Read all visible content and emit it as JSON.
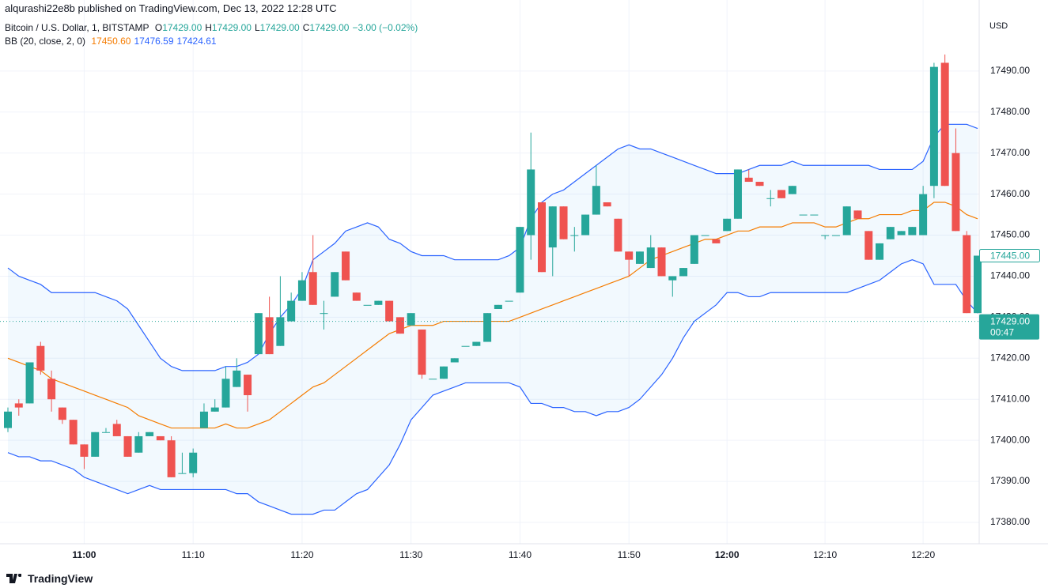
{
  "header": {
    "publisher": "alqurashi22e8b published on TradingView.com, Dec 13, 2022 12:28 UTC",
    "symbol": "Bitcoin / U.S. Dollar, 1, BITSTAMP",
    "ohlc": [
      {
        "key": "O",
        "text": "17429.00"
      },
      {
        "key": "H",
        "text": "17429.00"
      },
      {
        "key": "L",
        "text": "17429.00"
      },
      {
        "key": "C",
        "text": "17429.00"
      }
    ],
    "change": "−3.00 (−0.02%)",
    "indicator": "BB (20, close, 2, 0)",
    "indicator_values": [
      {
        "text": "17450.60",
        "color": "#f57c00"
      },
      {
        "text": "17476.59",
        "color": "#2962ff"
      },
      {
        "text": "17424.61",
        "color": "#2962ff"
      }
    ],
    "currency": "USD",
    "footer": "TradingView"
  },
  "chart_data": {
    "type": "candlestick",
    "categories": [
      null,
      null,
      null,
      null,
      null,
      null,
      null,
      "11:00",
      null,
      null,
      null,
      null,
      null,
      null,
      null,
      null,
      null,
      "11:10",
      null,
      null,
      null,
      null,
      null,
      null,
      null,
      null,
      null,
      "11:20",
      null,
      null,
      null,
      null,
      null,
      null,
      null,
      null,
      null,
      "11:30",
      null,
      null,
      null,
      null,
      null,
      null,
      null,
      null,
      null,
      "11:40",
      null,
      null,
      null,
      null,
      null,
      null,
      null,
      null,
      null,
      "11:50",
      null,
      null,
      null,
      null,
      null,
      null,
      null,
      null,
      "12:00",
      null,
      null,
      null,
      null,
      null,
      null,
      null,
      null,
      "12:10",
      null,
      null,
      null,
      null,
      null,
      null,
      null,
      null,
      "12:20",
      null,
      null,
      null,
      null,
      null
    ],
    "open": [
      17403,
      17409,
      17409,
      17423,
      17415,
      17408,
      17405,
      17399,
      17396,
      17402,
      17404,
      17401,
      17397,
      17401,
      17401,
      17400,
      17392,
      17392,
      17403,
      17407,
      17408,
      17413,
      17416,
      17421,
      17430,
      17423,
      17429,
      17434,
      17441,
      17431,
      17435,
      17446,
      17436,
      17433,
      17433,
      17434,
      17430,
      17428,
      17427,
      17415,
      17415,
      17419,
      17423,
      17423,
      17424,
      17432,
      17434,
      17436,
      17450,
      17458,
      17447,
      17457,
      17450,
      17450,
      17455,
      17458,
      17454,
      17446,
      17443,
      17442,
      17447,
      17439,
      17440,
      17443,
      17450,
      17449,
      17451,
      17454,
      17464,
      17463,
      17459,
      17461,
      17460,
      17455,
      17455,
      17450,
      17450,
      17450,
      17456,
      17451,
      17444,
      17449,
      17450,
      17450,
      17450,
      17462,
      17492,
      17470,
      17450,
      17431
    ],
    "high": [
      17408,
      17410,
      17419,
      17424,
      17417,
      17408,
      17405,
      17399,
      17402,
      17403,
      17405,
      17401,
      17402,
      17402,
      17401,
      17401,
      17397,
      17398,
      17409,
      17410,
      17418,
      17420,
      17416,
      17431,
      17435,
      17440,
      17436,
      17441,
      17450,
      17434,
      17441,
      17446,
      17436,
      17433,
      17434,
      17434,
      17430,
      17431,
      17427,
      17415,
      17418,
      17420,
      17423,
      17424,
      17431,
      17433,
      17434,
      17452,
      17475,
      17458,
      17457,
      17457,
      17452,
      17455,
      17467,
      17458,
      17454,
      17446,
      17446,
      17450,
      17447,
      17440,
      17442,
      17450,
      17450,
      17449,
      17454,
      17466,
      17466,
      17463,
      17461,
      17461,
      17462,
      17455,
      17455,
      17450,
      17450,
      17457,
      17456,
      17451,
      17448,
      17452,
      17451,
      17452,
      17462,
      17492,
      17494,
      17476,
      17451,
      17445
    ],
    "low": [
      17402,
      17406,
      17409,
      17416,
      17407,
      17404,
      17399,
      17393,
      17396,
      17402,
      17401,
      17396,
      17397,
      17401,
      17400,
      17391,
      17392,
      17391,
      17403,
      17407,
      17408,
      17413,
      17407,
      17421,
      17421,
      17423,
      17429,
      17434,
      17433,
      17427,
      17435,
      17439,
      17434,
      17433,
      17433,
      17429,
      17426,
      17428,
      17415,
      17415,
      17415,
      17419,
      17423,
      17423,
      17424,
      17432,
      17434,
      17436,
      17444,
      17441,
      17440,
      17449,
      17446,
      17450,
      17455,
      17457,
      17446,
      17440,
      17443,
      17442,
      17440,
      17435,
      17440,
      17443,
      17450,
      17448,
      17451,
      17454,
      17463,
      17462,
      17457,
      17459,
      17460,
      17455,
      17455,
      17449,
      17450,
      17450,
      17454,
      17444,
      17444,
      17449,
      17450,
      17450,
      17450,
      17459,
      17462,
      17451,
      17431,
      17431
    ],
    "close": [
      17407,
      17408,
      17419,
      17417,
      17410,
      17405,
      17399,
      17396,
      17402,
      17402,
      17401,
      17396,
      17401,
      17402,
      17400,
      17391,
      17392,
      17397,
      17407,
      17408,
      17415,
      17417,
      17411,
      17431,
      17421,
      17430,
      17434,
      17439,
      17433,
      17431,
      17441,
      17439,
      17434,
      17433,
      17434,
      17429,
      17426,
      17431,
      17416,
      17415,
      17418,
      17420,
      17423,
      17424,
      17431,
      17433,
      17434,
      17452,
      17466,
      17441,
      17457,
      17449,
      17450,
      17455,
      17462,
      17457,
      17446,
      17444,
      17446,
      17447,
      17440,
      17440,
      17442,
      17450,
      17450,
      17448,
      17454,
      17466,
      17463,
      17462,
      17459,
      17459,
      17462,
      17455,
      17455,
      17450,
      17450,
      17457,
      17454,
      17444,
      17448,
      17452,
      17451,
      17452,
      17460,
      17491,
      17462,
      17451,
      17431,
      17445
    ],
    "up_color": "#26a69a",
    "down_color": "#ef5350",
    "bands": {
      "fill": "rgba(33,150,243,0.06)",
      "upper": {
        "color": "#2962ff",
        "values": [
          17442,
          17440,
          17439,
          17438,
          17436,
          17436,
          17436,
          17436,
          17436,
          17435,
          17434,
          17432,
          17428,
          17424,
          17420,
          17418,
          17417,
          17417,
          17417,
          17417,
          17418,
          17418,
          17419,
          17421,
          17426,
          17430,
          17433,
          17437,
          17444,
          17446,
          17448,
          17451,
          17452,
          17453,
          17452,
          17449,
          17448,
          17446,
          17445,
          17445,
          17445,
          17444,
          17444,
          17444,
          17444,
          17444,
          17445,
          17447,
          17454,
          17458,
          17460,
          17461,
          17463,
          17465,
          17467,
          17469,
          17471,
          17472,
          17471,
          17471,
          17470,
          17469,
          17468,
          17467,
          17466,
          17465,
          17465,
          17465,
          17466,
          17467,
          17467,
          17467,
          17468,
          17467,
          17467,
          17467,
          17467,
          17467,
          17467,
          17467,
          17466,
          17466,
          17466,
          17466,
          17468,
          17474,
          17477,
          17477,
          17477,
          17476
        ]
      },
      "middle": {
        "color": "#f57c00",
        "values": [
          17420,
          17419,
          17418,
          17417,
          17415,
          17414,
          17413,
          17412,
          17411,
          17410,
          17409,
          17408,
          17406,
          17405,
          17404,
          17403,
          17403,
          17403,
          17403,
          17403,
          17404,
          17403,
          17403,
          17404,
          17405,
          17407,
          17409,
          17411,
          17413,
          17414,
          17416,
          17418,
          17420,
          17422,
          17424,
          17426,
          17427,
          17428,
          17428,
          17428,
          17429,
          17429,
          17429,
          17429,
          17429,
          17429,
          17429,
          17430,
          17431,
          17432,
          17433,
          17434,
          17435,
          17436,
          17437,
          17438,
          17439,
          17440,
          17442,
          17444,
          17445,
          17446,
          17447,
          17448,
          17449,
          17449,
          17450,
          17451,
          17451,
          17452,
          17452,
          17452,
          17453,
          17453,
          17453,
          17452,
          17452,
          17453,
          17454,
          17454,
          17455,
          17455,
          17455,
          17456,
          17456,
          17458,
          17458,
          17457,
          17455,
          17454
        ]
      },
      "lower": {
        "color": "#2962ff",
        "values": [
          17397,
          17396,
          17396,
          17395,
          17395,
          17394,
          17393,
          17391,
          17390,
          17389,
          17388,
          17387,
          17388,
          17389,
          17388,
          17388,
          17388,
          17388,
          17388,
          17388,
          17388,
          17387,
          17387,
          17385,
          17384,
          17383,
          17382,
          17382,
          17382,
          17383,
          17383,
          17385,
          17387,
          17388,
          17391,
          17394,
          17399,
          17405,
          17408,
          17411,
          17412,
          17413,
          17414,
          17414,
          17414,
          17414,
          17414,
          17413,
          17409,
          17409,
          17408,
          17408,
          17407,
          17407,
          17406,
          17407,
          17407,
          17408,
          17410,
          17413,
          17416,
          17420,
          17425,
          17429,
          17431,
          17433,
          17436,
          17436,
          17435,
          17435,
          17436,
          17436,
          17436,
          17436,
          17436,
          17436,
          17436,
          17436,
          17437,
          17438,
          17439,
          17441,
          17443,
          17444,
          17443,
          17438,
          17438,
          17438,
          17434,
          17431
        ]
      }
    },
    "ylim": [
      17374.8,
      17507.3
    ],
    "yticks": [
      {
        "value": 17380,
        "label": "17380.00"
      },
      {
        "value": 17390,
        "label": "17390.00"
      },
      {
        "value": 17400,
        "label": "17400.00"
      },
      {
        "value": 17410,
        "label": "17410.00"
      },
      {
        "value": 17420,
        "label": "17420.00"
      },
      {
        "value": 17430,
        "label": "17430.00"
      },
      {
        "value": 17440,
        "label": "17440.00"
      },
      {
        "value": 17450,
        "label": "17450.00"
      },
      {
        "value": 17460,
        "label": "17460.00"
      },
      {
        "value": 17470,
        "label": "17470.00"
      },
      {
        "value": 17480,
        "label": "17480.00"
      },
      {
        "value": 17490,
        "label": "17490.00"
      }
    ],
    "grid": true,
    "marker_price": {
      "value": 17445,
      "label": "17445.00"
    },
    "last_price": {
      "value": 17429,
      "label": "17429.00",
      "countdown": "00:47"
    }
  }
}
